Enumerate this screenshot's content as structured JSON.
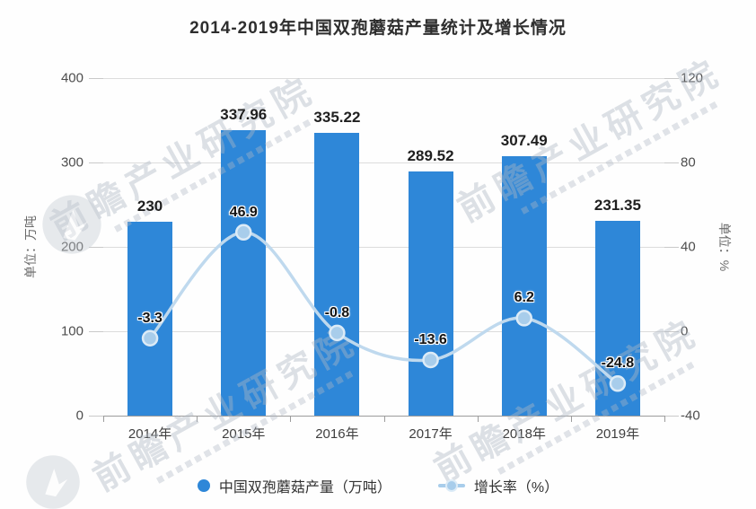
{
  "title": "2014-2019年中国双孢蘑菇产量统计及增长情况",
  "watermark": {
    "text": "前瞻产业研究院"
  },
  "axes": {
    "left": {
      "name": "单位：万吨",
      "ticks": [
        "400",
        "300",
        "200",
        "100",
        "0"
      ]
    },
    "right": {
      "name": "单位：%",
      "ticks": [
        "120",
        "80",
        "40",
        "0",
        "-40"
      ]
    }
  },
  "legend": {
    "items": [
      {
        "label": "中国双孢蘑菇产量（万吨）",
        "marker": "circle",
        "color": "#2e87d8"
      },
      {
        "label": "增长率（%）",
        "marker": "line-dot",
        "color": "#a8cdeb"
      }
    ]
  },
  "chart_data": {
    "type": "bar",
    "title": "2014-2019年中国双孢蘑菇产量统计及增长情况",
    "categories": [
      "2014年",
      "2015年",
      "2016年",
      "2017年",
      "2018年",
      "2019年"
    ],
    "series": [
      {
        "name": "中国双孢蘑菇产量（万吨）",
        "type": "bar",
        "axis": "left",
        "color": "#2e87d8",
        "values": [
          230,
          337.96,
          335.22,
          289.52,
          307.49,
          231.35
        ]
      },
      {
        "name": "增长率（%）",
        "type": "line",
        "axis": "right",
        "color": "#bfd9ee",
        "marker_color": "#a8cdeb",
        "smooth": true,
        "values": [
          -3.3,
          46.9,
          -0.8,
          -13.6,
          6.2,
          -24.8
        ]
      }
    ],
    "left_axis": {
      "label": "单位：万吨",
      "range": [
        0,
        400
      ],
      "tick_step": 100
    },
    "right_axis": {
      "label": "单位：%",
      "range": [
        -40,
        120
      ],
      "tick_step": 40
    },
    "grid": true,
    "legend_position": "bottom"
  },
  "colors": {
    "bar": "#2e87d8",
    "line": "#bfd9ee",
    "marker": "#a8cdeb",
    "gridline": "#dcdcdc",
    "axis_line": "#9c9c9c",
    "text": "#333333",
    "watermark": "#aeb7c3"
  }
}
